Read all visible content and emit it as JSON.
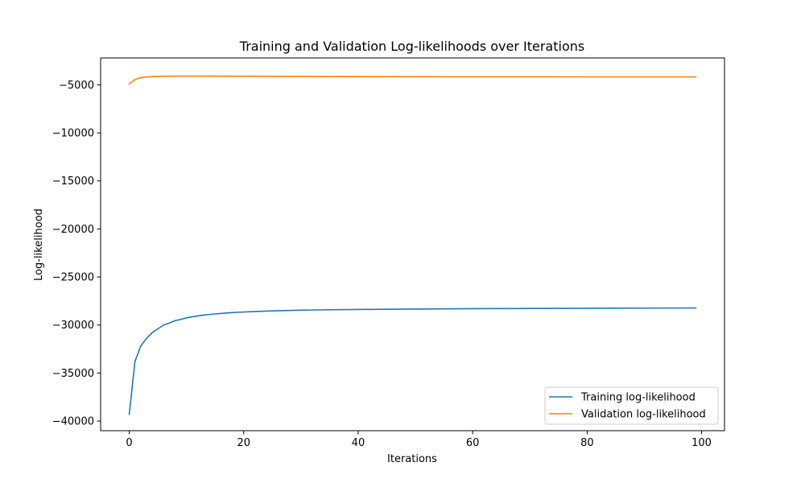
{
  "chart_data": {
    "type": "line",
    "title": "Training and Validation Log-likelihoods over Iterations",
    "xlabel": "Iterations",
    "ylabel": "Log-likelihood",
    "xlim": [
      -5,
      104
    ],
    "ylim": [
      -41000,
      -2200
    ],
    "x_ticks": [
      0,
      20,
      40,
      60,
      80,
      100
    ],
    "y_ticks": [
      -40000,
      -35000,
      -30000,
      -25000,
      -20000,
      -15000,
      -10000,
      -5000
    ],
    "x_tick_labels": [
      "0",
      "20",
      "40",
      "60",
      "80",
      "100"
    ],
    "y_tick_labels": [
      "−40000",
      "−35000",
      "−30000",
      "−25000",
      "−20000",
      "−15000",
      "−10000",
      "−5000"
    ],
    "grid": false,
    "legend": "lower-right",
    "series": [
      {
        "name": "Training log-likelihood",
        "color": "#1f77b4",
        "points": [
          [
            0,
            -39300
          ],
          [
            1,
            -33800
          ],
          [
            2,
            -32200
          ],
          [
            3,
            -31400
          ],
          [
            4,
            -30800
          ],
          [
            5,
            -30400
          ],
          [
            6,
            -30000
          ],
          [
            7,
            -29800
          ],
          [
            8,
            -29550
          ],
          [
            9,
            -29420
          ],
          [
            10,
            -29250
          ],
          [
            11,
            -29150
          ],
          [
            12,
            -29050
          ],
          [
            13,
            -28970
          ],
          [
            14,
            -28900
          ],
          [
            15,
            -28850
          ],
          [
            16,
            -28800
          ],
          [
            17,
            -28750
          ],
          [
            18,
            -28710
          ],
          [
            19,
            -28670
          ],
          [
            20,
            -28650
          ],
          [
            22,
            -28590
          ],
          [
            25,
            -28530
          ],
          [
            30,
            -28460
          ],
          [
            35,
            -28410
          ],
          [
            40,
            -28380
          ],
          [
            45,
            -28360
          ],
          [
            50,
            -28340
          ],
          [
            55,
            -28320
          ],
          [
            60,
            -28300
          ],
          [
            65,
            -28290
          ],
          [
            70,
            -28280
          ],
          [
            75,
            -28270
          ],
          [
            80,
            -28260
          ],
          [
            85,
            -28250
          ],
          [
            90,
            -28240
          ],
          [
            95,
            -28230
          ],
          [
            99,
            -28230
          ]
        ]
      },
      {
        "name": "Validation log-likelihood",
        "color": "#ff7f0e",
        "points": [
          [
            0,
            -4900
          ],
          [
            1,
            -4450
          ],
          [
            2,
            -4250
          ],
          [
            3,
            -4180
          ],
          [
            4,
            -4140
          ],
          [
            5,
            -4120
          ],
          [
            6,
            -4100
          ],
          [
            8,
            -4090
          ],
          [
            10,
            -4085
          ],
          [
            15,
            -4090
          ],
          [
            20,
            -4100
          ],
          [
            30,
            -4120
          ],
          [
            40,
            -4140
          ],
          [
            50,
            -4150
          ],
          [
            60,
            -4160
          ],
          [
            70,
            -4165
          ],
          [
            80,
            -4170
          ],
          [
            90,
            -4170
          ],
          [
            99,
            -4170
          ]
        ]
      }
    ]
  }
}
